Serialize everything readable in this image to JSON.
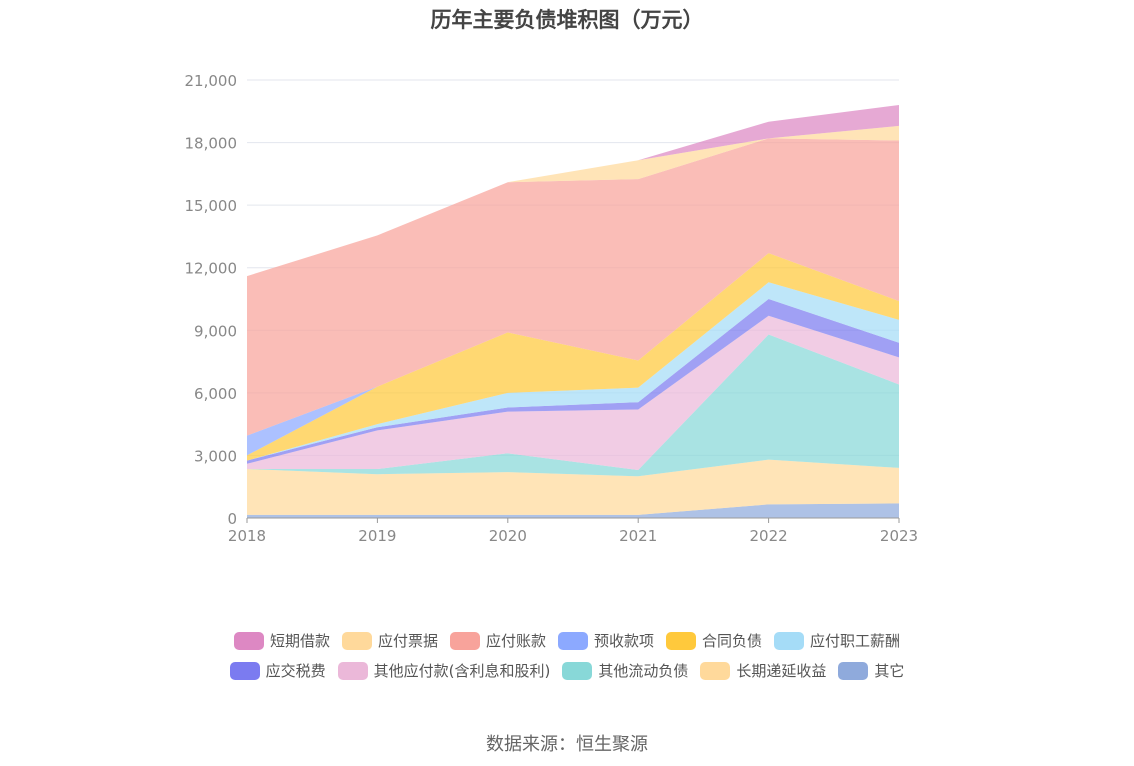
{
  "chart_data": {
    "type": "area",
    "stacked": true,
    "title": "历年主要负债堆积图（万元）",
    "x": [
      "2018",
      "2019",
      "2020",
      "2021",
      "2022",
      "2023"
    ],
    "ylim": [
      0,
      21000
    ],
    "yticks": [
      0,
      3000,
      6000,
      9000,
      12000,
      15000,
      18000,
      21000
    ],
    "ytick_labels": [
      "0",
      "3,000",
      "6,000",
      "9,000",
      "12,000",
      "15,000",
      "18,000",
      "21,000"
    ],
    "grid": true,
    "legend_position": "bottom",
    "series": [
      {
        "name": "其它",
        "color": "#8faadc",
        "values": [
          150,
          150,
          150,
          150,
          650,
          700
        ]
      },
      {
        "name": "长期递延收益",
        "color": "#ffd99b",
        "values": [
          2200,
          1950,
          2050,
          1850,
          2150,
          1700
        ]
      },
      {
        "name": "其他流动负债",
        "color": "#88d8d8",
        "values": [
          0,
          250,
          900,
          300,
          6000,
          4000
        ]
      },
      {
        "name": "其他应付款(含利息和股利)",
        "color": "#ebb8d9",
        "values": [
          250,
          1850,
          2000,
          2900,
          900,
          1300
        ]
      },
      {
        "name": "应交税费",
        "color": "#7b7bf0",
        "values": [
          150,
          150,
          200,
          350,
          800,
          700
        ]
      },
      {
        "name": "应付职工薪酬",
        "color": "#a5dcf7",
        "values": [
          0,
          150,
          700,
          700,
          800,
          1100
        ]
      },
      {
        "name": "合同负债",
        "color": "#ffc93c",
        "values": [
          250,
          1800,
          2900,
          1300,
          1400,
          900
        ]
      },
      {
        "name": "预收款项",
        "color": "#8ca9ff",
        "values": [
          950,
          0,
          0,
          0,
          0,
          0
        ]
      },
      {
        "name": "应付账款",
        "color": "#f8a39b",
        "values": [
          7650,
          7250,
          7200,
          8700,
          5500,
          7700
        ]
      },
      {
        "name": "应付票据",
        "color": "#ffd99b",
        "values": [
          0,
          0,
          0,
          900,
          0,
          700
        ]
      },
      {
        "name": "短期借款",
        "color": "#dd88c3",
        "values": [
          0,
          0,
          0,
          0,
          800,
          1000
        ]
      }
    ],
    "legend": [
      [
        "短期借款",
        "应付票据",
        "应付账款",
        "预收款项",
        "合同负债",
        "应付职工薪酬"
      ],
      [
        "应交税费",
        "其他应付款(含利息和股利)",
        "其他流动负债",
        "长期递延收益",
        "其它"
      ]
    ],
    "source": "数据来源：恒生聚源"
  }
}
